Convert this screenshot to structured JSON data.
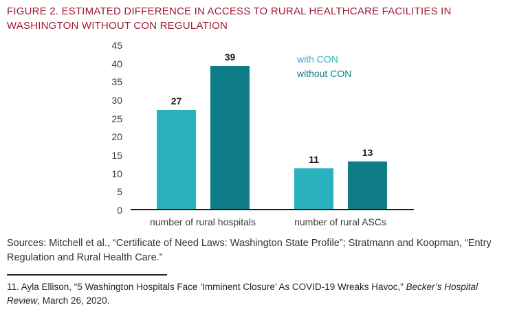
{
  "figure": {
    "title": "FIGURE 2. ESTIMATED DIFFERENCE IN ACCESS TO RURAL HEALTHCARE FACILITIES IN WASHINGTON WITHOUT CON REGULATION",
    "title_color": "#9e1b32"
  },
  "chart_data": {
    "type": "bar",
    "categories": [
      "number of rural hospitals",
      "number of rural ASCs"
    ],
    "series": [
      {
        "name": "with CON",
        "color": "#29b2bd",
        "values": [
          27,
          11
        ]
      },
      {
        "name": "without CON",
        "color": "#0f7d87",
        "values": [
          39,
          13
        ]
      }
    ],
    "title": "",
    "xlabel": "",
    "ylabel": "",
    "ylim": [
      0,
      45
    ],
    "ytick_step": 5,
    "grid": false,
    "legend_position": "top-right",
    "value_labels": true
  },
  "sources": "Sources: Mitchell et al., “Certificate of Need Laws: Washington State Profile”; Stratmann and Koopman, “Entry Regulation and Rural Health Care.”",
  "footnote": {
    "prefix": "11. Ayla Ellison, “5 Washington Hospitals Face ‘Imminent Closure’ As COVID-19 Wreaks Havoc,” ",
    "italic": "Becker’s Hospital Review",
    "suffix": ", March 26, 2020."
  }
}
